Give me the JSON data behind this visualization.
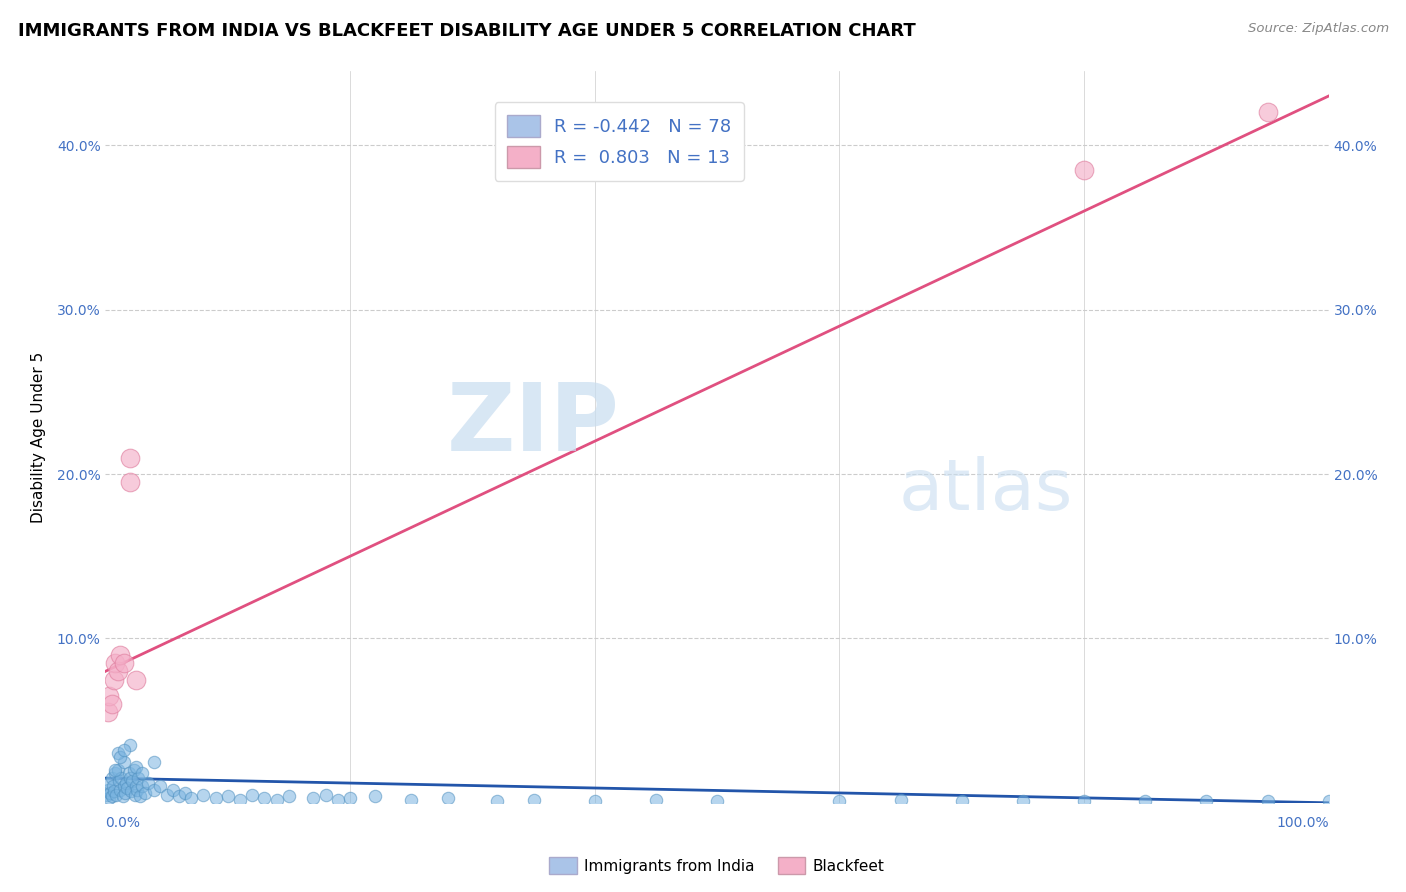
{
  "title": "IMMIGRANTS FROM INDIA VS BLACKFEET DISABILITY AGE UNDER 5 CORRELATION CHART",
  "source": "Source: ZipAtlas.com",
  "ylabel": "Disability Age Under 5",
  "legend_items": [
    {
      "label": "Immigrants from India",
      "color": "#aac4e8",
      "border": "#7aadd4",
      "r": -0.442,
      "n": 78
    },
    {
      "label": "Blackfeet",
      "color": "#f4b0c8",
      "border": "#e888a8",
      "r": 0.803,
      "n": 13
    }
  ],
  "blue_scatter_x": [
    0.1,
    0.2,
    0.3,
    0.3,
    0.4,
    0.5,
    0.5,
    0.6,
    0.7,
    0.8,
    0.9,
    1.0,
    1.1,
    1.2,
    1.3,
    1.4,
    1.5,
    1.5,
    1.6,
    1.7,
    1.8,
    1.9,
    2.0,
    2.1,
    2.2,
    2.3,
    2.4,
    2.5,
    2.6,
    2.7,
    2.8,
    3.0,
    3.2,
    3.5,
    4.0,
    4.5,
    5.0,
    5.5,
    6.0,
    6.5,
    7.0,
    8.0,
    9.0,
    10.0,
    11.0,
    12.0,
    13.0,
    14.0,
    15.0,
    17.0,
    18.0,
    19.0,
    20.0,
    22.0,
    25.0,
    28.0,
    32.0,
    35.0,
    40.0,
    45.0,
    50.0,
    60.0,
    65.0,
    70.0,
    75.0,
    80.0,
    85.0,
    90.0,
    95.0,
    100.0,
    1.0,
    1.2,
    2.0,
    2.5,
    3.0,
    4.0,
    0.8,
    1.5
  ],
  "blue_scatter_y": [
    0.5,
    0.8,
    1.2,
    0.3,
    0.6,
    1.5,
    0.4,
    1.0,
    0.7,
    1.8,
    0.5,
    2.0,
    1.3,
    0.8,
    1.5,
    0.4,
    1.0,
    2.5,
    0.6,
    1.2,
    0.9,
    1.8,
    1.5,
    0.7,
    1.3,
    2.0,
    0.5,
    1.0,
    0.8,
    1.5,
    0.4,
    1.0,
    0.6,
    1.2,
    0.8,
    1.0,
    0.5,
    0.8,
    0.4,
    0.6,
    0.3,
    0.5,
    0.3,
    0.4,
    0.2,
    0.5,
    0.3,
    0.2,
    0.4,
    0.3,
    0.5,
    0.2,
    0.3,
    0.4,
    0.2,
    0.3,
    0.1,
    0.2,
    0.1,
    0.2,
    0.1,
    0.1,
    0.2,
    0.1,
    0.1,
    0.1,
    0.1,
    0.1,
    0.1,
    0.1,
    3.0,
    2.8,
    3.5,
    2.2,
    1.8,
    2.5,
    2.0,
    3.2
  ],
  "pink_scatter_x": [
    0.2,
    0.3,
    0.5,
    0.7,
    0.8,
    1.0,
    1.2,
    1.5,
    2.0,
    2.0,
    2.5,
    80.0,
    95.0
  ],
  "pink_scatter_y": [
    5.5,
    6.5,
    6.0,
    7.5,
    8.5,
    8.0,
    9.0,
    8.5,
    19.5,
    21.0,
    7.5,
    38.5,
    42.0
  ],
  "blue_line_x": [
    0.0,
    100.0
  ],
  "blue_line_y": [
    1.5,
    0.0
  ],
  "pink_line_x": [
    0.0,
    100.0
  ],
  "pink_line_y": [
    8.0,
    43.0
  ],
  "xlim": [
    0.0,
    100.0
  ],
  "ylim": [
    0.0,
    44.5
  ],
  "yticks": [
    0.0,
    10.0,
    20.0,
    30.0,
    40.0
  ],
  "xticks": [
    0.0,
    20.0,
    40.0,
    60.0,
    80.0,
    100.0
  ],
  "title_fontsize": 13,
  "axis_color": "#4472c4",
  "blue_scatter_color": "#7ab4e0",
  "blue_scatter_edge": "#5090c0",
  "pink_scatter_color": "#f4afc8",
  "pink_scatter_edge": "#e080a0",
  "blue_line_color": "#2255aa",
  "pink_line_color": "#e05080",
  "grid_color": "#cccccc",
  "background_color": "#ffffff",
  "watermark_zip_color": "#c8ddf0",
  "watermark_atlas_color": "#c8ddf0"
}
